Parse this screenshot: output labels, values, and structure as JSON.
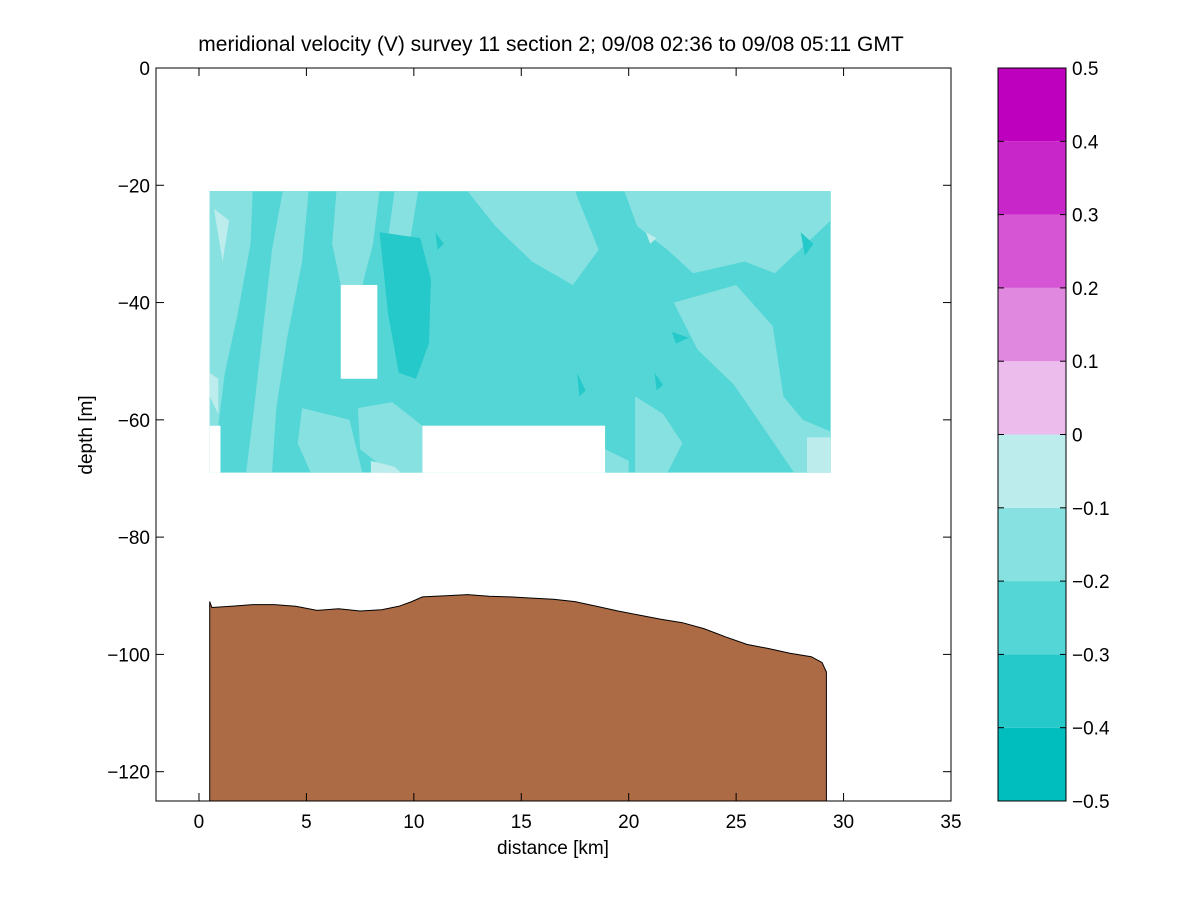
{
  "chart_data": {
    "type": "contour",
    "title": "meridional velocity (V) survey 11 section 2; 09/08 02:36 to 09/08 05:11 GMT",
    "xlabel": "distance [km]",
    "ylabel": "depth [m]",
    "xlim": [
      -2,
      35
    ],
    "ylim": [
      -125,
      0
    ],
    "x_ticks": [
      0,
      5,
      10,
      15,
      20,
      25,
      30,
      35
    ],
    "y_ticks": [
      0,
      -20,
      -40,
      -60,
      -80,
      -100,
      -120
    ],
    "grid": false,
    "colorbar": {
      "position": "right",
      "range": [
        -0.5,
        0.5
      ],
      "ticks": [
        0.5,
        0.4,
        0.3,
        0.2,
        0.1,
        0,
        -0.1,
        -0.2,
        -0.3,
        -0.4,
        -0.5
      ],
      "tick_labels": [
        "0.5",
        "0.4",
        "0.3",
        "0.2",
        "0.1",
        "0",
        "−0.1",
        "−0.2",
        "−0.3",
        "−0.4",
        "−0.5"
      ],
      "levels": [
        {
          "from": -0.5,
          "to": -0.4,
          "color": "#00bebe"
        },
        {
          "from": -0.4,
          "to": -0.3,
          "color": "#26c9c9"
        },
        {
          "from": -0.3,
          "to": -0.2,
          "color": "#55d6d6"
        },
        {
          "from": -0.2,
          "to": -0.1,
          "color": "#88e1e1"
        },
        {
          "from": -0.1,
          "to": 0.0,
          "color": "#bdecec"
        },
        {
          "from": 0.0,
          "to": 0.1,
          "color": "#ecbdec"
        },
        {
          "from": 0.1,
          "to": 0.2,
          "color": "#e088e0"
        },
        {
          "from": 0.2,
          "to": 0.3,
          "color": "#d555d5"
        },
        {
          "from": 0.3,
          "to": 0.4,
          "color": "#c926c9"
        },
        {
          "from": 0.4,
          "to": 0.5,
          "color": "#be00be"
        }
      ]
    },
    "data_region": {
      "x_range": [
        0.5,
        29.4
      ],
      "depth_range": [
        -21,
        -69
      ],
      "background_value_range": [
        -0.3,
        -0.2
      ],
      "cutouts": [
        {
          "x": [
            6.6,
            8.3
          ],
          "depth": [
            -37,
            -53
          ]
        },
        {
          "x": [
            10.4,
            18.9
          ],
          "depth": [
            -61,
            -69
          ]
        },
        {
          "x": [
            0.5,
            1.0
          ],
          "depth": [
            -61,
            -69
          ]
        }
      ],
      "patches": [
        {
          "value_range": [
            -0.2,
            -0.1
          ],
          "polygon": [
            [
              0.5,
              -21
            ],
            [
              2.5,
              -21
            ],
            [
              2.4,
              -30
            ],
            [
              1.8,
              -42
            ],
            [
              1.2,
              -52
            ],
            [
              0.9,
              -61
            ],
            [
              0.5,
              -61
            ]
          ]
        },
        {
          "value_range": [
            -0.2,
            -0.1
          ],
          "polygon": [
            [
              3.9,
              -21
            ],
            [
              5.1,
              -21
            ],
            [
              4.8,
              -33
            ],
            [
              4.1,
              -46
            ],
            [
              3.6,
              -58
            ],
            [
              3.4,
              -69
            ],
            [
              2.2,
              -69
            ],
            [
              2.6,
              -57
            ],
            [
              3.0,
              -44
            ],
            [
              3.4,
              -31
            ]
          ]
        },
        {
          "value_range": [
            -0.2,
            -0.1
          ],
          "polygon": [
            [
              6.4,
              -21
            ],
            [
              8.4,
              -21
            ],
            [
              8.1,
              -30
            ],
            [
              7.6,
              -37
            ],
            [
              6.6,
              -37
            ],
            [
              6.2,
              -30
            ]
          ]
        },
        {
          "value_range": [
            -0.2,
            -0.1
          ],
          "polygon": [
            [
              9.1,
              -21
            ],
            [
              10.2,
              -21
            ],
            [
              9.8,
              -30
            ],
            [
              9.2,
              -36
            ],
            [
              8.8,
              -29
            ]
          ]
        },
        {
          "value_range": [
            -0.2,
            -0.1
          ],
          "polygon": [
            [
              7.4,
              -58
            ],
            [
              9.0,
              -57
            ],
            [
              10.4,
              -61
            ],
            [
              10.4,
              -69
            ],
            [
              8.9,
              -69
            ],
            [
              7.5,
              -65
            ]
          ]
        },
        {
          "value_range": [
            -0.2,
            -0.1
          ],
          "polygon": [
            [
              4.8,
              -58
            ],
            [
              7.0,
              -60
            ],
            [
              7.6,
              -69
            ],
            [
              5.2,
              -69
            ],
            [
              4.6,
              -64
            ]
          ]
        },
        {
          "value_range": [
            -0.2,
            -0.1
          ],
          "polygon": [
            [
              12.5,
              -21
            ],
            [
              17.5,
              -21
            ],
            [
              18.6,
              -31
            ],
            [
              17.4,
              -37
            ],
            [
              15.5,
              -33
            ],
            [
              13.8,
              -27
            ]
          ]
        },
        {
          "value_range": [
            -0.2,
            -0.1
          ],
          "polygon": [
            [
              19.8,
              -21
            ],
            [
              29.4,
              -21
            ],
            [
              29.4,
              -26
            ],
            [
              26.8,
              -35
            ],
            [
              25.4,
              -33
            ],
            [
              23.0,
              -35
            ],
            [
              21.8,
              -31
            ],
            [
              20.4,
              -27
            ]
          ]
        },
        {
          "value_range": [
            -0.2,
            -0.1
          ],
          "polygon": [
            [
              22.1,
              -40
            ],
            [
              25.0,
              -37
            ],
            [
              26.7,
              -44
            ],
            [
              27.2,
              -56
            ],
            [
              28.1,
              -60
            ],
            [
              29.4,
              -62
            ],
            [
              29.4,
              -69
            ],
            [
              27.7,
              -69
            ],
            [
              26.4,
              -62
            ],
            [
              24.9,
              -54
            ],
            [
              23.2,
              -48
            ]
          ]
        },
        {
          "value_range": [
            -0.2,
            -0.1
          ],
          "polygon": [
            [
              20.3,
              -56
            ],
            [
              21.6,
              -59
            ],
            [
              22.5,
              -64
            ],
            [
              21.8,
              -69
            ],
            [
              20.3,
              -69
            ]
          ]
        },
        {
          "value_range": [
            -0.2,
            -0.1
          ],
          "polygon": [
            [
              18.9,
              -65
            ],
            [
              20.0,
              -67
            ],
            [
              20.0,
              -69
            ],
            [
              18.9,
              -69
            ]
          ]
        },
        {
          "value_range": [
            -0.4,
            -0.3
          ],
          "polygon": [
            [
              8.4,
              -28
            ],
            [
              10.3,
              -29
            ],
            [
              10.8,
              -36
            ],
            [
              10.7,
              -47
            ],
            [
              10.1,
              -53
            ],
            [
              9.3,
              -52
            ],
            [
              8.8,
              -42
            ]
          ]
        },
        {
          "value_range": [
            -0.4,
            -0.3
          ],
          "polygon": [
            [
              11.0,
              -28
            ],
            [
              11.4,
              -30
            ],
            [
              11.1,
              -31
            ]
          ]
        },
        {
          "value_range": [
            -0.4,
            -0.3
          ],
          "polygon": [
            [
              17.6,
              -52
            ],
            [
              18.0,
              -55
            ],
            [
              17.7,
              -56
            ]
          ]
        },
        {
          "value_range": [
            -0.4,
            -0.3
          ],
          "polygon": [
            [
              21.2,
              -52
            ],
            [
              21.6,
              -54
            ],
            [
              21.3,
              -55
            ]
          ]
        },
        {
          "value_range": [
            -0.4,
            -0.3
          ],
          "polygon": [
            [
              22.0,
              -45
            ],
            [
              22.8,
              -46
            ],
            [
              22.2,
              -47
            ]
          ]
        },
        {
          "value_range": [
            -0.4,
            -0.3
          ],
          "polygon": [
            [
              28.0,
              -28
            ],
            [
              28.6,
              -30
            ],
            [
              28.2,
              -32
            ]
          ]
        },
        {
          "value_range": [
            -0.1,
            0.0
          ],
          "polygon": [
            [
              0.7,
              -24
            ],
            [
              1.4,
              -26
            ],
            [
              1.1,
              -33
            ]
          ]
        },
        {
          "value_range": [
            -0.1,
            0.0
          ],
          "polygon": [
            [
              0.5,
              -52
            ],
            [
              0.9,
              -53
            ],
            [
              0.9,
              -59
            ],
            [
              0.5,
              -56
            ]
          ]
        },
        {
          "value_range": [
            -0.1,
            0.0
          ],
          "polygon": [
            [
              8.0,
              -67
            ],
            [
              9.1,
              -68
            ],
            [
              9.4,
              -69
            ],
            [
              8.0,
              -69
            ]
          ]
        },
        {
          "value_range": [
            -0.1,
            0.0
          ],
          "polygon": [
            [
              20.8,
              -28
            ],
            [
              21.3,
              -29
            ],
            [
              21.0,
              -30
            ]
          ]
        },
        {
          "value_range": [
            -0.1,
            0.0
          ],
          "polygon": [
            [
              28.3,
              -63
            ],
            [
              29.4,
              -63
            ],
            [
              29.4,
              -69
            ],
            [
              28.3,
              -69
            ]
          ]
        }
      ]
    },
    "bathymetry": {
      "fill_color": "#ac6b45",
      "x_range": [
        0.5,
        29.2
      ],
      "surface": [
        [
          0.5,
          -91
        ],
        [
          0.6,
          -92
        ],
        [
          1.5,
          -91.8
        ],
        [
          2.5,
          -91.5
        ],
        [
          3.5,
          -91.5
        ],
        [
          4.5,
          -91.8
        ],
        [
          5.5,
          -92.5
        ],
        [
          6.5,
          -92.2
        ],
        [
          7.5,
          -92.6
        ],
        [
          8.5,
          -92.4
        ],
        [
          9.3,
          -91.8
        ],
        [
          9.9,
          -91.0
        ],
        [
          10.4,
          -90.2
        ],
        [
          11.5,
          -90.0
        ],
        [
          12.5,
          -89.8
        ],
        [
          13.5,
          -90.1
        ],
        [
          14.5,
          -90.2
        ],
        [
          15.5,
          -90.4
        ],
        [
          16.5,
          -90.6
        ],
        [
          17.5,
          -91.0
        ],
        [
          18.5,
          -91.8
        ],
        [
          19.5,
          -92.6
        ],
        [
          20.5,
          -93.3
        ],
        [
          21.5,
          -94.0
        ],
        [
          22.5,
          -94.6
        ],
        [
          23.5,
          -95.6
        ],
        [
          24.5,
          -97.0
        ],
        [
          25.5,
          -98.3
        ],
        [
          26.5,
          -99.0
        ],
        [
          27.5,
          -99.8
        ],
        [
          28.5,
          -100.4
        ],
        [
          29.0,
          -101.4
        ],
        [
          29.2,
          -103
        ]
      ]
    }
  }
}
